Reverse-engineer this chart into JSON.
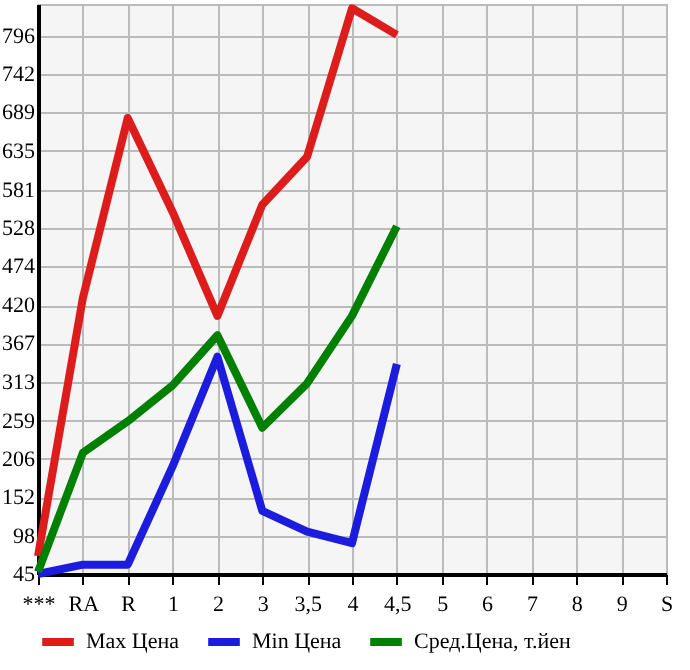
{
  "chart_data": {
    "type": "line",
    "categories": [
      "***",
      "RA",
      "R",
      "1",
      "2",
      "3",
      "3,5",
      "4",
      "4,5",
      "5",
      "6",
      "7",
      "8",
      "9",
      "S"
    ],
    "series": [
      {
        "name": "Max Цена",
        "color": "#dd1c1c",
        "values": [
          70,
          430,
          681,
          550,
          405,
          560,
          627,
          834,
          797,
          null,
          null,
          null,
          null,
          null,
          null
        ]
      },
      {
        "name": "Min Цена",
        "color": "#1c1cdd",
        "values": [
          45,
          58,
          58,
          195,
          348,
          133,
          104,
          88,
          338,
          null,
          null,
          null,
          null,
          null,
          null
        ]
      },
      {
        "name": "Сред.Цена, т.йен",
        "color": "#008000",
        "values": [
          48,
          214,
          258,
          308,
          378,
          249,
          311,
          405,
          530,
          null,
          null,
          null,
          null,
          null,
          null
        ]
      }
    ],
    "ylim": [
      45,
      840
    ],
    "yticks": [
      45,
      98,
      152,
      206,
      259,
      313,
      367,
      420,
      474,
      528,
      581,
      635,
      689,
      742,
      796
    ],
    "grid": true,
    "legend": "bottom",
    "marker": "none",
    "line_style": "solid"
  }
}
